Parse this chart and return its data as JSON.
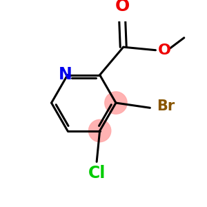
{
  "bg_color": "#ffffff",
  "atom_colors": {
    "N": "#0000ee",
    "O": "#ee0000",
    "Cl": "#00cc00",
    "Br": "#885500",
    "C": "#000000"
  },
  "bond_color": "#000000",
  "highlight_color": "#ffaaaa",
  "lw": 2.2
}
